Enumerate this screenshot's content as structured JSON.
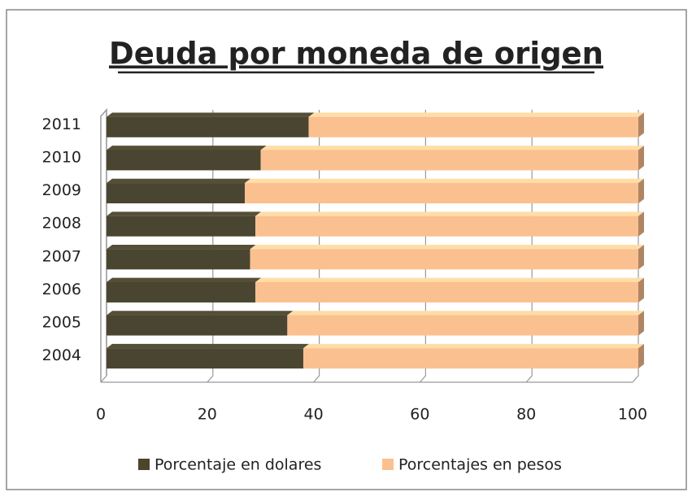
{
  "chart_data": {
    "type": "bar",
    "orientation": "horizontal",
    "stacked": true,
    "title": "Deuda por moneda de origen",
    "categories": [
      "2004",
      "2005",
      "2006",
      "2007",
      "2008",
      "2009",
      "2010",
      "2011"
    ],
    "series": [
      {
        "name": "Porcentaje en dolares",
        "color": "#4a4530",
        "values": [
          37,
          34,
          28,
          27,
          28,
          26,
          29,
          38
        ]
      },
      {
        "name": "Porcentajes en pesos",
        "color": "#fac090",
        "values": [
          63,
          66,
          72,
          73,
          72,
          74,
          71,
          62
        ]
      }
    ],
    "xlim": [
      0,
      100
    ],
    "xticks": [
      0,
      20,
      40,
      60,
      80,
      100
    ],
    "grid": true,
    "legend": "bottom"
  }
}
